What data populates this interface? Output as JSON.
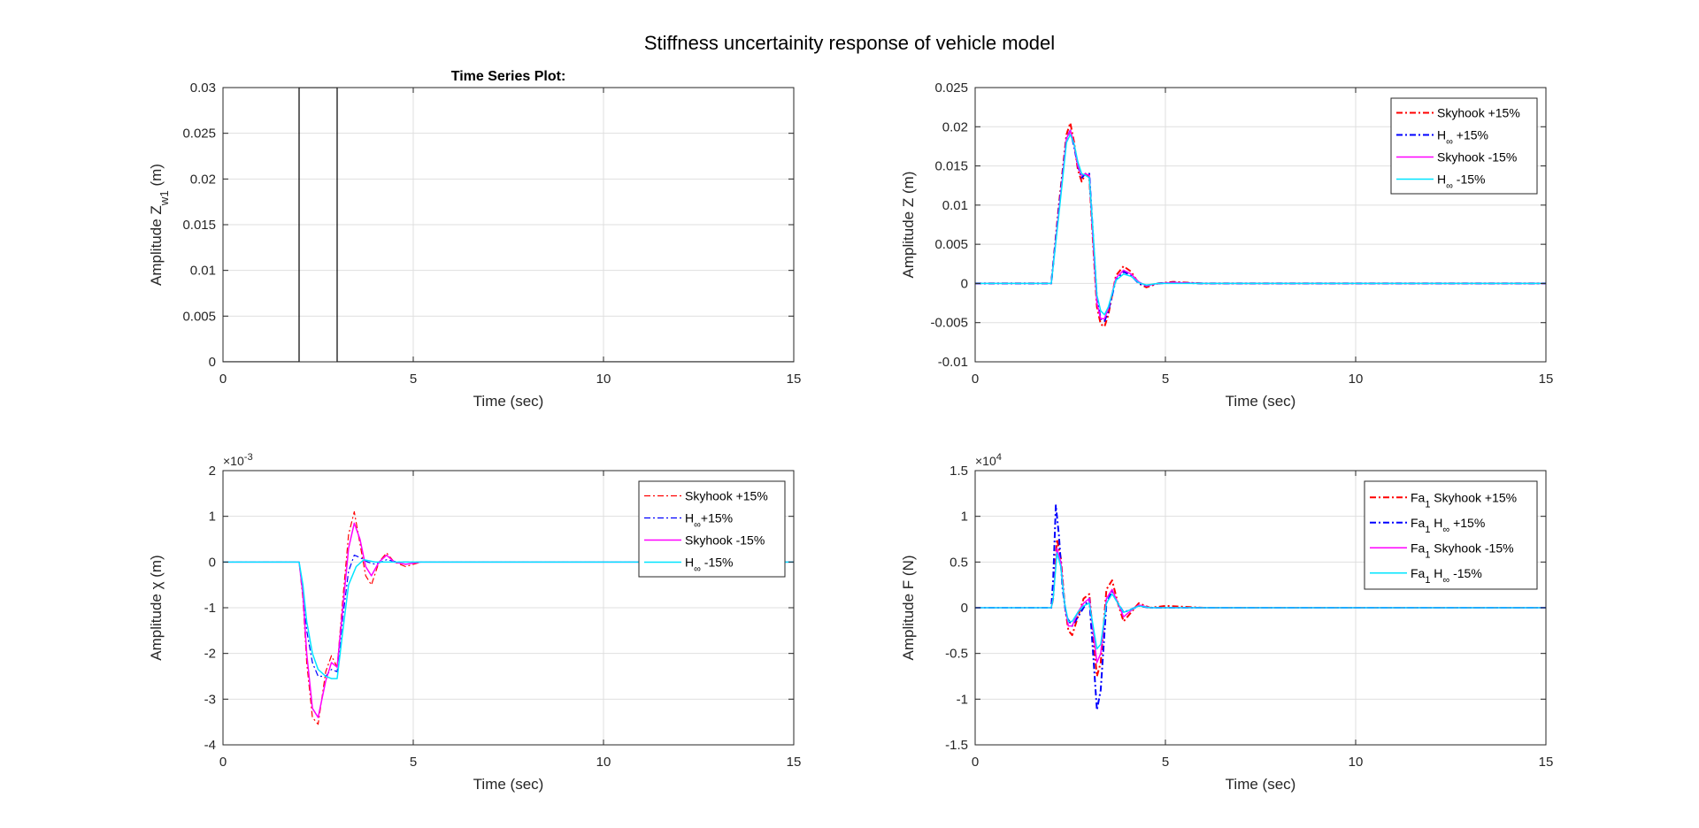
{
  "figure_title": "Stiffness uncertainity response of vehicle model",
  "chart_data": [
    {
      "id": "p1",
      "type": "line",
      "title": "Time Series Plot:",
      "xlabel": "Time (sec)",
      "ylabel_parts": [
        [
          "Amplitude Z",
          ""
        ],
        [
          "w1",
          "sub"
        ],
        [
          " (m)",
          ""
        ]
      ],
      "xlim": [
        0,
        15
      ],
      "ylim": [
        0,
        0.03
      ],
      "xticks": [
        0,
        5,
        10,
        15
      ],
      "yticks": [
        0,
        0.005,
        0.01,
        0.015,
        0.02,
        0.025,
        0.03
      ],
      "ytick_labels": [
        "0",
        "0.005",
        "0.01",
        "0.015",
        "0.02",
        "0.025",
        "0.03"
      ],
      "exponent": "",
      "grid": true,
      "legend": null,
      "series": [
        {
          "color": "#000000",
          "dash": "",
          "width": 1.2,
          "x": [
            0,
            2,
            2,
            3,
            3,
            15
          ],
          "y": [
            0,
            0,
            0.03,
            0.03,
            0,
            0
          ]
        }
      ]
    },
    {
      "id": "p2",
      "type": "line",
      "title": "",
      "xlabel": "Time (sec)",
      "ylabel_parts": [
        [
          "Amplitude Z (m)",
          ""
        ]
      ],
      "xlim": [
        0,
        15
      ],
      "ylim": [
        -0.01,
        0.025
      ],
      "xticks": [
        0,
        5,
        10,
        15
      ],
      "yticks": [
        -0.01,
        -0.005,
        0,
        0.005,
        0.01,
        0.015,
        0.02,
        0.025
      ],
      "ytick_labels": [
        "-0.01",
        "-0.005",
        "0",
        "0.005",
        "0.01",
        "0.015",
        "0.02",
        "0.025"
      ],
      "exponent": "",
      "grid": true,
      "legend": "top-right",
      "series": [
        {
          "name": "Skyhook +15%",
          "name_parts": [
            [
              "Skyhook +15%",
              ""
            ]
          ],
          "color": "#ff0000",
          "dash": "7,3,2,3",
          "width": 2,
          "x": [
            0,
            2,
            2.2,
            2.4,
            2.5,
            2.6,
            2.7,
            2.8,
            2.9,
            3.0,
            3.1,
            3.2,
            3.3,
            3.4,
            3.5,
            3.7,
            3.9,
            4.1,
            4.3,
            4.5,
            4.8,
            5.2,
            6,
            15
          ],
          "y": [
            0,
            0,
            0.01,
            0.019,
            0.0205,
            0.018,
            0.0145,
            0.013,
            0.014,
            0.0135,
            0.005,
            -0.003,
            -0.0052,
            -0.0055,
            -0.004,
            0.001,
            0.0022,
            0.0015,
            0,
            -0.0005,
            0,
            0.0002,
            0,
            0
          ]
        },
        {
          "name": "H∞ +15%",
          "name_parts": [
            [
              "H",
              ""
            ],
            [
              "∞",
              "sub"
            ],
            [
              " +15%",
              ""
            ]
          ],
          "color": "#0000ff",
          "dash": "7,3,2,3",
          "width": 2,
          "x": [
            0,
            2,
            2.2,
            2.4,
            2.5,
            2.6,
            2.7,
            2.8,
            2.9,
            3.0,
            3.1,
            3.2,
            3.3,
            3.4,
            3.5,
            3.7,
            3.9,
            4.1,
            4.3,
            4.5,
            4.8,
            5.2,
            6,
            15
          ],
          "y": [
            0,
            0,
            0.0095,
            0.0185,
            0.0195,
            0.0175,
            0.015,
            0.0135,
            0.014,
            0.014,
            0.006,
            -0.002,
            -0.0045,
            -0.0048,
            -0.0035,
            0.0005,
            0.0015,
            0.001,
            0,
            -0.0003,
            0,
            0.0001,
            0,
            0
          ]
        },
        {
          "name": "Skyhook -15%",
          "name_parts": [
            [
              "Skyhook -15%",
              ""
            ]
          ],
          "color": "#ff00ff",
          "dash": "",
          "width": 1.5,
          "x": [
            0,
            2,
            2.2,
            2.4,
            2.5,
            2.6,
            2.7,
            2.8,
            2.9,
            3.0,
            3.1,
            3.2,
            3.3,
            3.4,
            3.5,
            3.7,
            3.9,
            4.1,
            4.3,
            4.5,
            4.8,
            5.2,
            6,
            15
          ],
          "y": [
            0,
            0,
            0.0092,
            0.0185,
            0.0195,
            0.0178,
            0.015,
            0.0138,
            0.014,
            0.0138,
            0.0055,
            -0.0025,
            -0.0045,
            -0.0045,
            -0.0032,
            0.0007,
            0.0017,
            0.0012,
            0.0002,
            -0.0003,
            0,
            0.0001,
            0,
            0
          ]
        },
        {
          "name": "H∞ -15%",
          "name_parts": [
            [
              "H",
              ""
            ],
            [
              "∞",
              "sub"
            ],
            [
              " -15%",
              ""
            ]
          ],
          "color": "#00e5ff",
          "dash": "",
          "width": 1.5,
          "x": [
            0,
            2,
            2.2,
            2.4,
            2.5,
            2.6,
            2.7,
            2.8,
            2.9,
            3.0,
            3.1,
            3.2,
            3.3,
            3.4,
            3.5,
            3.7,
            3.9,
            4.1,
            4.3,
            4.5,
            4.8,
            5.2,
            6,
            15
          ],
          "y": [
            0,
            0,
            0.0088,
            0.018,
            0.019,
            0.0178,
            0.0155,
            0.014,
            0.0138,
            0.0135,
            0.0065,
            -0.0015,
            -0.0035,
            -0.004,
            -0.003,
            0.0004,
            0.0012,
            0.0009,
            0.0001,
            -0.0002,
            0,
            0,
            0,
            0
          ]
        }
      ]
    },
    {
      "id": "p3",
      "type": "line",
      "title": "",
      "xlabel": "Time (sec)",
      "ylabel_parts": [
        [
          "Amplitude χ (m)",
          ""
        ]
      ],
      "xlim": [
        0,
        15
      ],
      "ylim": [
        -4,
        2
      ],
      "xticks": [
        0,
        5,
        10,
        15
      ],
      "yticks": [
        -4,
        -3,
        -2,
        -1,
        0,
        1,
        2
      ],
      "ytick_labels": [
        "-4",
        "-3",
        "-2",
        "-1",
        "0",
        "1",
        "2"
      ],
      "exponent": "-3",
      "grid": true,
      "legend": "top-right",
      "series": [
        {
          "name": "Skyhook +15%",
          "name_parts": [
            [
              "Skyhook +15%",
              ""
            ]
          ],
          "color": "#ff0000",
          "dash": "7,3,2,3",
          "width": 1.2,
          "x": [
            0,
            2,
            2.1,
            2.2,
            2.35,
            2.5,
            2.7,
            2.85,
            3.0,
            3.15,
            3.3,
            3.45,
            3.6,
            3.75,
            3.9,
            4.1,
            4.3,
            4.5,
            4.8,
            5.2,
            6,
            15
          ],
          "y": [
            0,
            0,
            -0.8,
            -2.2,
            -3.4,
            -3.55,
            -2.4,
            -2.05,
            -2.3,
            -0.8,
            0.6,
            1.1,
            0.4,
            -0.3,
            -0.5,
            0,
            0.2,
            0,
            -0.1,
            0,
            0,
            0
          ]
        },
        {
          "name": "H∞ +15%",
          "name_parts": [
            [
              "H",
              ""
            ],
            [
              "∞",
              "sub"
            ],
            [
              "+15%",
              ""
            ]
          ],
          "color": "#0000ff",
          "dash": "7,3,2,3",
          "width": 1.2,
          "x": [
            0,
            2,
            2.1,
            2.2,
            2.35,
            2.5,
            2.7,
            2.85,
            3.0,
            3.15,
            3.3,
            3.45,
            3.6,
            3.8,
            4.0,
            4.3,
            4.6,
            5.0,
            6,
            15
          ],
          "y": [
            0,
            0,
            -0.6,
            -1.5,
            -2.2,
            -2.5,
            -2.5,
            -2.35,
            -2.4,
            -1.2,
            -0.2,
            0.15,
            0.1,
            0,
            -0.05,
            0.05,
            0,
            0,
            0,
            0
          ]
        },
        {
          "name": "Skyhook -15%",
          "name_parts": [
            [
              "Skyhook -15%",
              ""
            ]
          ],
          "color": "#ff00ff",
          "dash": "",
          "width": 1.5,
          "x": [
            0,
            2,
            2.1,
            2.2,
            2.35,
            2.5,
            2.7,
            2.85,
            3.0,
            3.15,
            3.3,
            3.45,
            3.6,
            3.75,
            3.9,
            4.1,
            4.3,
            4.5,
            4.8,
            5.2,
            6,
            15
          ],
          "y": [
            0,
            0,
            -0.7,
            -2.0,
            -3.2,
            -3.4,
            -2.6,
            -2.2,
            -2.3,
            -1.0,
            0.3,
            0.85,
            0.5,
            -0.1,
            -0.3,
            0,
            0.15,
            0,
            -0.05,
            0,
            0,
            0
          ]
        },
        {
          "name": "H∞ -15%",
          "name_parts": [
            [
              "H",
              ""
            ],
            [
              "∞",
              "sub"
            ],
            [
              " -15%",
              ""
            ]
          ],
          "color": "#00e5ff",
          "dash": "",
          "width": 1.5,
          "x": [
            0,
            2,
            2.1,
            2.2,
            2.35,
            2.5,
            2.7,
            2.85,
            3.0,
            3.15,
            3.3,
            3.5,
            3.7,
            4.0,
            4.4,
            5.0,
            6,
            15
          ],
          "y": [
            0,
            0,
            -0.5,
            -1.3,
            -2.0,
            -2.35,
            -2.5,
            -2.55,
            -2.55,
            -1.5,
            -0.5,
            -0.1,
            0.05,
            0,
            0,
            0,
            0,
            0
          ]
        }
      ]
    },
    {
      "id": "p4",
      "type": "line",
      "title": "",
      "xlabel": "Time (sec)",
      "ylabel_parts": [
        [
          "Amplitude F (N)",
          ""
        ]
      ],
      "xlim": [
        0,
        15
      ],
      "ylim": [
        -1.5,
        1.5
      ],
      "xticks": [
        0,
        5,
        10,
        15
      ],
      "yticks": [
        -1.5,
        -1,
        -0.5,
        0,
        0.5,
        1,
        1.5
      ],
      "ytick_labels": [
        "-1.5",
        "-1",
        "-0.5",
        "0",
        "0.5",
        "1",
        "1.5"
      ],
      "exponent": "4",
      "grid": true,
      "legend": "top-right",
      "series": [
        {
          "name": "Fa1 Skyhook +15%",
          "name_parts": [
            [
              "Fa",
              ""
            ],
            [
              "1",
              "sub"
            ],
            [
              " Skyhook +15%",
              ""
            ]
          ],
          "color": "#ff0000",
          "dash": "7,3,2,3",
          "width": 2,
          "x": [
            0,
            2,
            2.05,
            2.15,
            2.25,
            2.35,
            2.45,
            2.55,
            2.7,
            2.85,
            3.0,
            3.1,
            3.2,
            3.3,
            3.45,
            3.6,
            3.75,
            3.9,
            4.1,
            4.3,
            4.6,
            5.0,
            6,
            15
          ],
          "y": [
            0,
            0,
            0.1,
            0.75,
            0.55,
            0.05,
            -0.25,
            -0.3,
            -0.1,
            0.1,
            0.15,
            -0.3,
            -0.75,
            -0.6,
            0.2,
            0.3,
            0.05,
            -0.15,
            -0.05,
            0.05,
            0,
            0.02,
            0,
            0
          ]
        },
        {
          "name": "Fa1 H∞ +15%",
          "name_parts": [
            [
              "Fa",
              ""
            ],
            [
              "1",
              "sub"
            ],
            [
              " H",
              ""
            ],
            [
              "∞",
              "sub"
            ],
            [
              " +15%",
              ""
            ]
          ],
          "color": "#0000ff",
          "dash": "7,3,2,3",
          "width": 2,
          "x": [
            0,
            2,
            2.05,
            2.12,
            2.2,
            2.3,
            2.4,
            2.55,
            2.7,
            2.85,
            3.0,
            3.1,
            3.2,
            3.3,
            3.45,
            3.6,
            3.75,
            3.9,
            4.1,
            4.3,
            4.6,
            5.0,
            6,
            15
          ],
          "y": [
            0,
            0,
            0.3,
            1.12,
            0.8,
            0.2,
            -0.1,
            -0.2,
            -0.1,
            0.0,
            0.1,
            -0.5,
            -1.12,
            -0.9,
            0.05,
            0.18,
            0.05,
            -0.05,
            -0.02,
            0.02,
            0,
            0,
            0,
            0
          ]
        },
        {
          "name": "Fa1 Skyhook -15%",
          "name_parts": [
            [
              "Fa",
              ""
            ],
            [
              "1",
              "sub"
            ],
            [
              " Skyhook -15%",
              ""
            ]
          ],
          "color": "#ff00ff",
          "dash": "",
          "width": 1.5,
          "x": [
            0,
            2,
            2.05,
            2.15,
            2.25,
            2.35,
            2.45,
            2.55,
            2.7,
            2.85,
            3.0,
            3.1,
            3.2,
            3.3,
            3.45,
            3.6,
            3.75,
            3.9,
            4.1,
            4.3,
            4.6,
            5.0,
            6,
            15
          ],
          "y": [
            0,
            0,
            0.1,
            0.65,
            0.5,
            0.05,
            -0.2,
            -0.2,
            -0.05,
            0.05,
            0.1,
            -0.25,
            -0.6,
            -0.5,
            0.1,
            0.2,
            0.05,
            -0.1,
            -0.03,
            0.03,
            0,
            0,
            0,
            0
          ]
        },
        {
          "name": "Fa1 H∞ -15%",
          "name_parts": [
            [
              "Fa",
              ""
            ],
            [
              "1",
              "sub"
            ],
            [
              " H",
              ""
            ],
            [
              "∞",
              "sub"
            ],
            [
              " -15%",
              ""
            ]
          ],
          "color": "#00e5ff",
          "dash": "",
          "width": 1.5,
          "x": [
            0,
            2,
            2.05,
            2.15,
            2.25,
            2.35,
            2.45,
            2.55,
            2.7,
            2.85,
            3.0,
            3.1,
            3.2,
            3.3,
            3.45,
            3.6,
            3.75,
            3.9,
            4.1,
            4.3,
            4.6,
            5.0,
            6,
            15
          ],
          "y": [
            0,
            0,
            0.1,
            0.6,
            0.45,
            0.05,
            -0.15,
            -0.15,
            -0.05,
            0.02,
            0.05,
            -0.2,
            -0.45,
            -0.4,
            0.05,
            0.15,
            0.05,
            -0.05,
            -0.02,
            0.02,
            0,
            0,
            0,
            0
          ]
        }
      ]
    }
  ]
}
